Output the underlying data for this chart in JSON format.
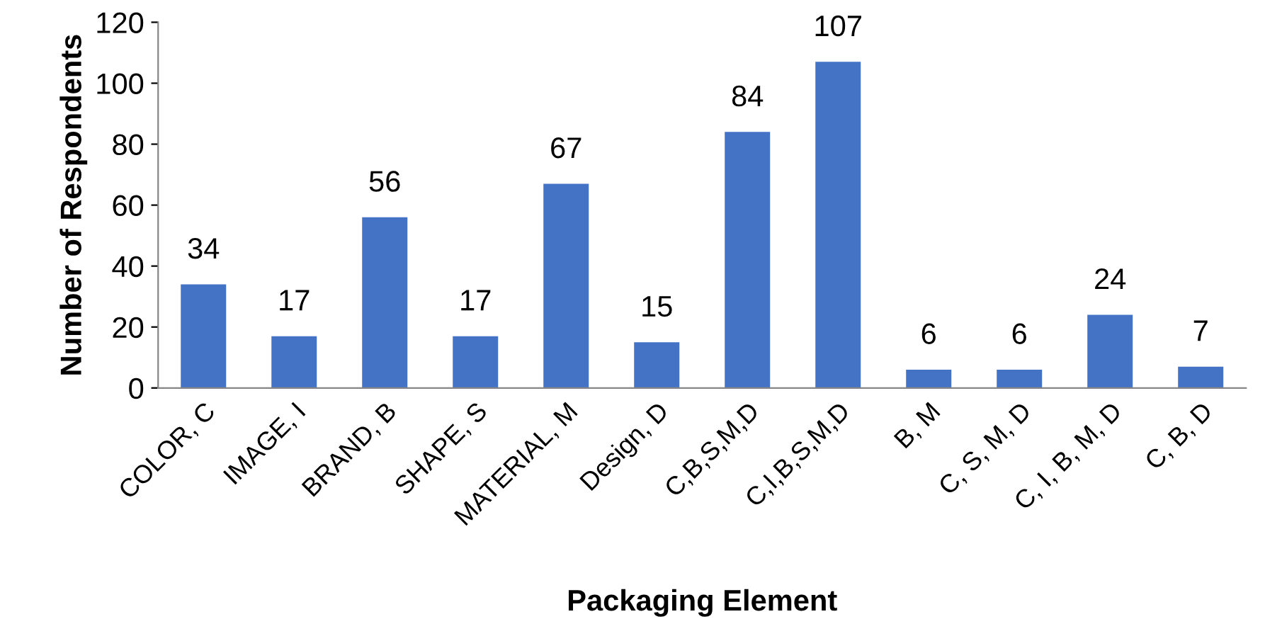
{
  "chart_data": {
    "type": "bar",
    "xlabel": "Packaging Element",
    "ylabel": "Number of Respondents",
    "categories": [
      "COLOR, C",
      "IMAGE, I",
      "BRAND, B",
      "SHAPE, S",
      "MATERIAL, M",
      "Design, D",
      "C,B,S,M,D",
      "C,I,B,S,M,D",
      "B, M",
      "C, S, M, D",
      "C, I, B, M, D",
      "C, B, D"
    ],
    "values": [
      34,
      17,
      56,
      17,
      67,
      15,
      84,
      107,
      6,
      6,
      24,
      7
    ],
    "color": "#4472c4",
    "ylim": [
      0,
      120
    ],
    "yticks": [
      0,
      20,
      40,
      60,
      80,
      100,
      120
    ],
    "grid": false,
    "data_labels": true
  }
}
